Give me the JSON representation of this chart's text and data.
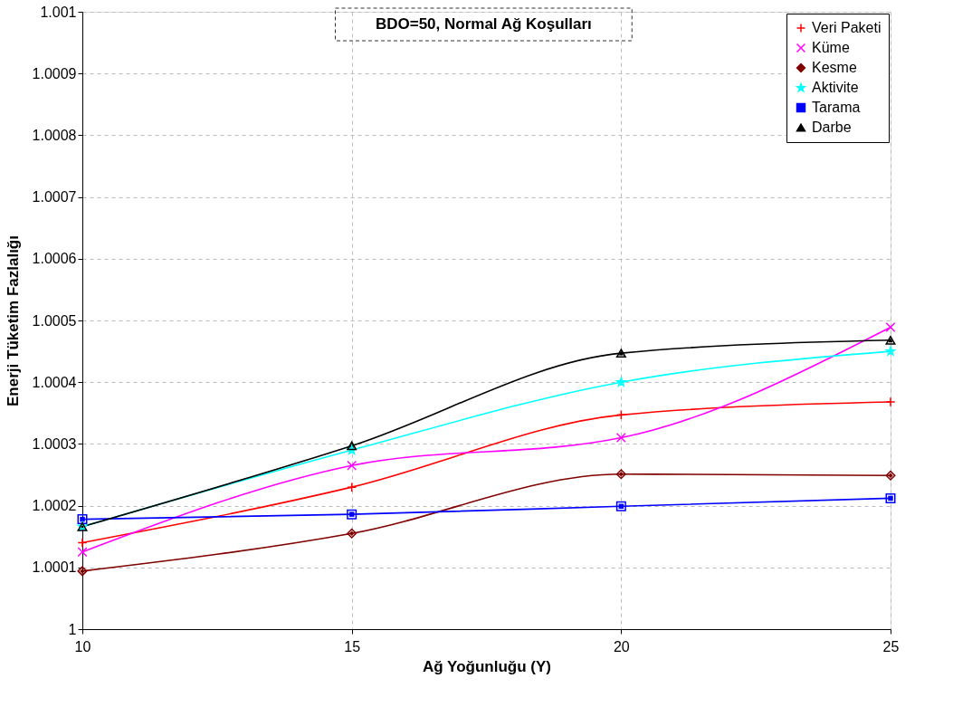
{
  "chart_data": {
    "type": "line",
    "xlabel": "Ağ Yoğunluğu (Y)",
    "ylabel": "Enerji Tüketim Fazlalığı",
    "annotations": [
      "BDO=50, Normal Ağ Koşulları"
    ],
    "x": [
      10,
      15,
      20,
      25
    ],
    "series": [
      {
        "name": "Veri Paketi",
        "color": "#ff0000",
        "marker": "cross",
        "values": [
          1.00014,
          1.00023,
          1.000347,
          1.000368
        ]
      },
      {
        "name": "Küme",
        "color": "#ff00ff",
        "marker": "x",
        "values": [
          1.000125,
          1.000265,
          1.00031,
          1.000489
        ]
      },
      {
        "name": "Kesme",
        "color": "#800000",
        "marker": "diamond",
        "values": [
          1.000094,
          1.000155,
          1.000251,
          1.000249
        ]
      },
      {
        "name": "Aktivite",
        "color": "#00ffff",
        "marker": "star",
        "values": [
          1.000166,
          1.00029,
          1.0004,
          1.00045
        ]
      },
      {
        "name": "Tarama",
        "color": "#0000ff",
        "marker": "square",
        "values": [
          1.000178,
          1.000186,
          1.000199,
          1.000212
        ]
      },
      {
        "name": "Darbe",
        "color": "#000000",
        "marker": "triangle",
        "values": [
          1.000166,
          1.000297,
          1.000447,
          1.000468
        ]
      }
    ],
    "xlim": [
      10,
      25
    ],
    "xticks": [
      10,
      15,
      20,
      25
    ],
    "ylim": [
      1,
      1.001
    ],
    "yticks": [
      1,
      1.0001,
      1.0002,
      1.0003,
      1.0004,
      1.0005,
      1.0006,
      1.0007,
      1.0008,
      1.0009,
      1.001
    ],
    "grid": true,
    "legend": "top right",
    "line_style": "solid"
  }
}
